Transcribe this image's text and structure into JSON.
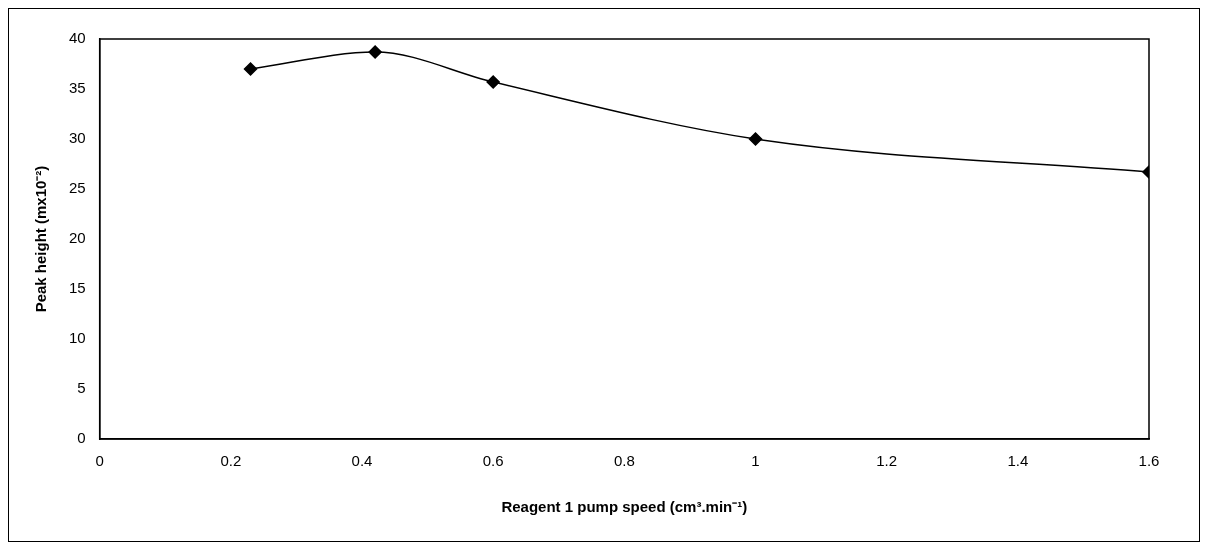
{
  "chart_data": {
    "type": "line",
    "xlabel": "Reagent 1 pump speed (cm³.min⁻¹)",
    "ylabel": "Peak height (mx10⁻²)",
    "x": [
      0.23,
      0.42,
      0.6,
      1.0,
      1.6
    ],
    "series": [
      {
        "color": "#000000",
        "values": [
          37,
          38.7,
          35.7,
          30,
          26.7
        ]
      }
    ],
    "xlim": [
      0,
      1.6
    ],
    "xticks": [
      0,
      0.2,
      0.4,
      0.6,
      0.8,
      1,
      1.2,
      1.4,
      1.6
    ],
    "ylim": [
      0,
      40
    ],
    "yticks": [
      0,
      5,
      10,
      15,
      20,
      25,
      30,
      35,
      40
    ],
    "grid": false,
    "legend": false,
    "marker": "diamond",
    "line_style": "solid"
  }
}
